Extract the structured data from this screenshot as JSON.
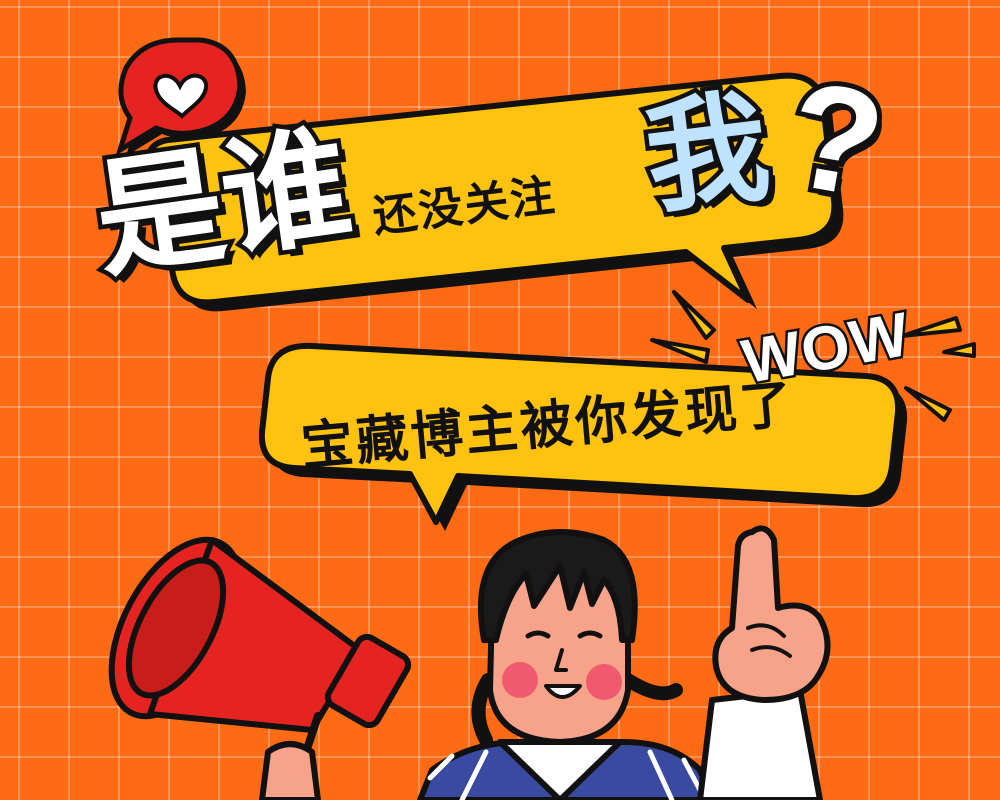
{
  "headline": {
    "char_1": "是",
    "char_2": "谁",
    "middle": "还没关注",
    "char_me": "我",
    "question_mark": "?"
  },
  "exclamation": "WOW",
  "subtitle": "宝藏博主被你发现了",
  "colors": {
    "background": "#ff6a14",
    "bubble": "#ffc20e",
    "outline": "#111111",
    "highlight": "#bfe3ff",
    "megaphone": "#e52421",
    "heart_badge": "#e52421"
  },
  "icons": [
    "heart-icon",
    "megaphone-icon",
    "pointing-hand-icon"
  ]
}
